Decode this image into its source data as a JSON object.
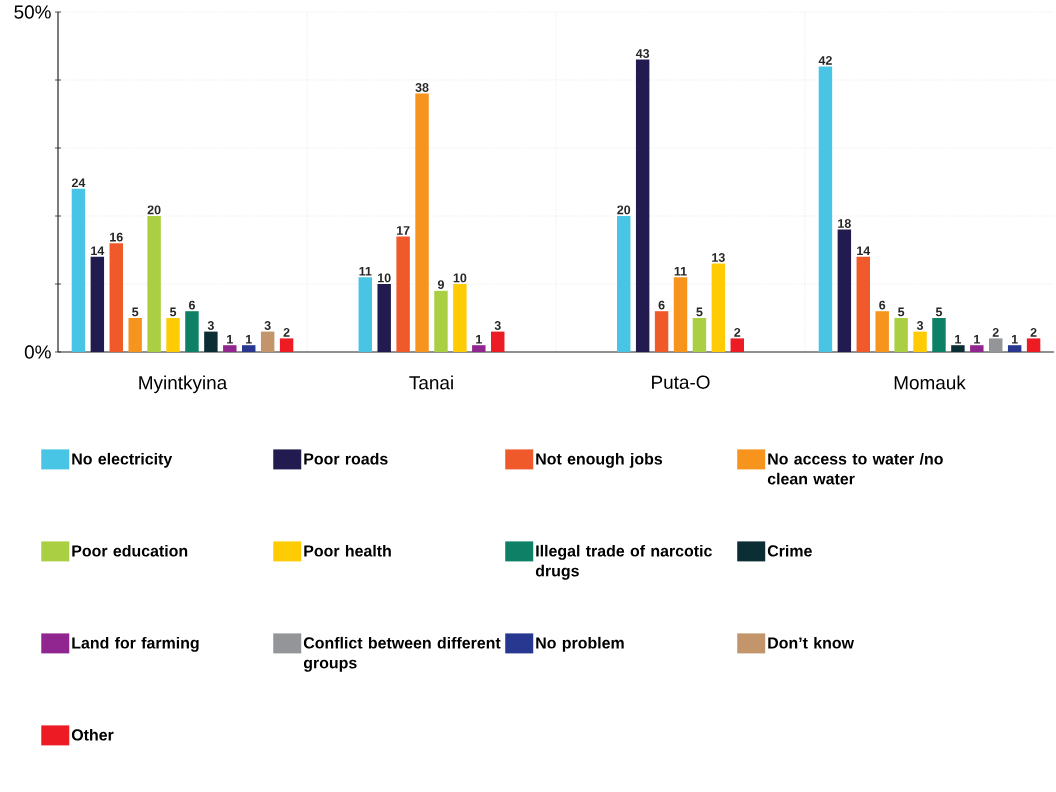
{
  "chart_data": {
    "type": "bar",
    "categories": [
      "Myintkyina",
      "Tanai",
      "Puta-O",
      "Momauk"
    ],
    "ylim": [
      0,
      50
    ],
    "yticks": [
      {
        "value": 0,
        "label": "0%"
      },
      {
        "value": 10,
        "label": null
      },
      {
        "value": 20,
        "label": null
      },
      {
        "value": 30,
        "label": null
      },
      {
        "value": 40,
        "label": null
      },
      {
        "value": 50,
        "label": "50%"
      }
    ],
    "grid": true,
    "legend": "bottom",
    "data_labels": true,
    "series": [
      {
        "name": "No electricity",
        "color": "#48c5e5",
        "values": [
          24,
          11,
          20,
          42
        ]
      },
      {
        "name": "Poor roads",
        "color": "#221b4f",
        "values": [
          14,
          10,
          43,
          18
        ]
      },
      {
        "name": "Not enough jobs",
        "color": "#f05a2b",
        "values": [
          16,
          17,
          6,
          14
        ]
      },
      {
        "name": "No access to water /no clean water",
        "color": "#f7941e",
        "values": [
          5,
          38,
          11,
          6
        ]
      },
      {
        "name": "Poor education",
        "color": "#abcf43",
        "values": [
          20,
          9,
          5,
          5
        ]
      },
      {
        "name": "Poor health",
        "color": "#ffcb05",
        "values": [
          5,
          10,
          13,
          3
        ]
      },
      {
        "name": "Illegal trade of narcotic drugs",
        "color": "#0d8066",
        "values": [
          6,
          null,
          null,
          5
        ]
      },
      {
        "name": "Crime",
        "color": "#0b2e35",
        "values": [
          3,
          null,
          null,
          1
        ]
      },
      {
        "name": "Land for farming",
        "color": "#922690",
        "values": [
          1,
          1,
          null,
          1
        ]
      },
      {
        "name": "Conflict between different groups",
        "color": "#939598",
        "values": [
          null,
          null,
          null,
          2
        ]
      },
      {
        "name": "No problem",
        "color": "#283891",
        "values": [
          1,
          null,
          null,
          1
        ]
      },
      {
        "name": "Don’t know",
        "color": "#c2966a",
        "values": [
          3,
          null,
          null,
          null
        ]
      },
      {
        "name": "Other",
        "color": "#ed1c24",
        "values": [
          2,
          3,
          2,
          2
        ]
      }
    ]
  }
}
